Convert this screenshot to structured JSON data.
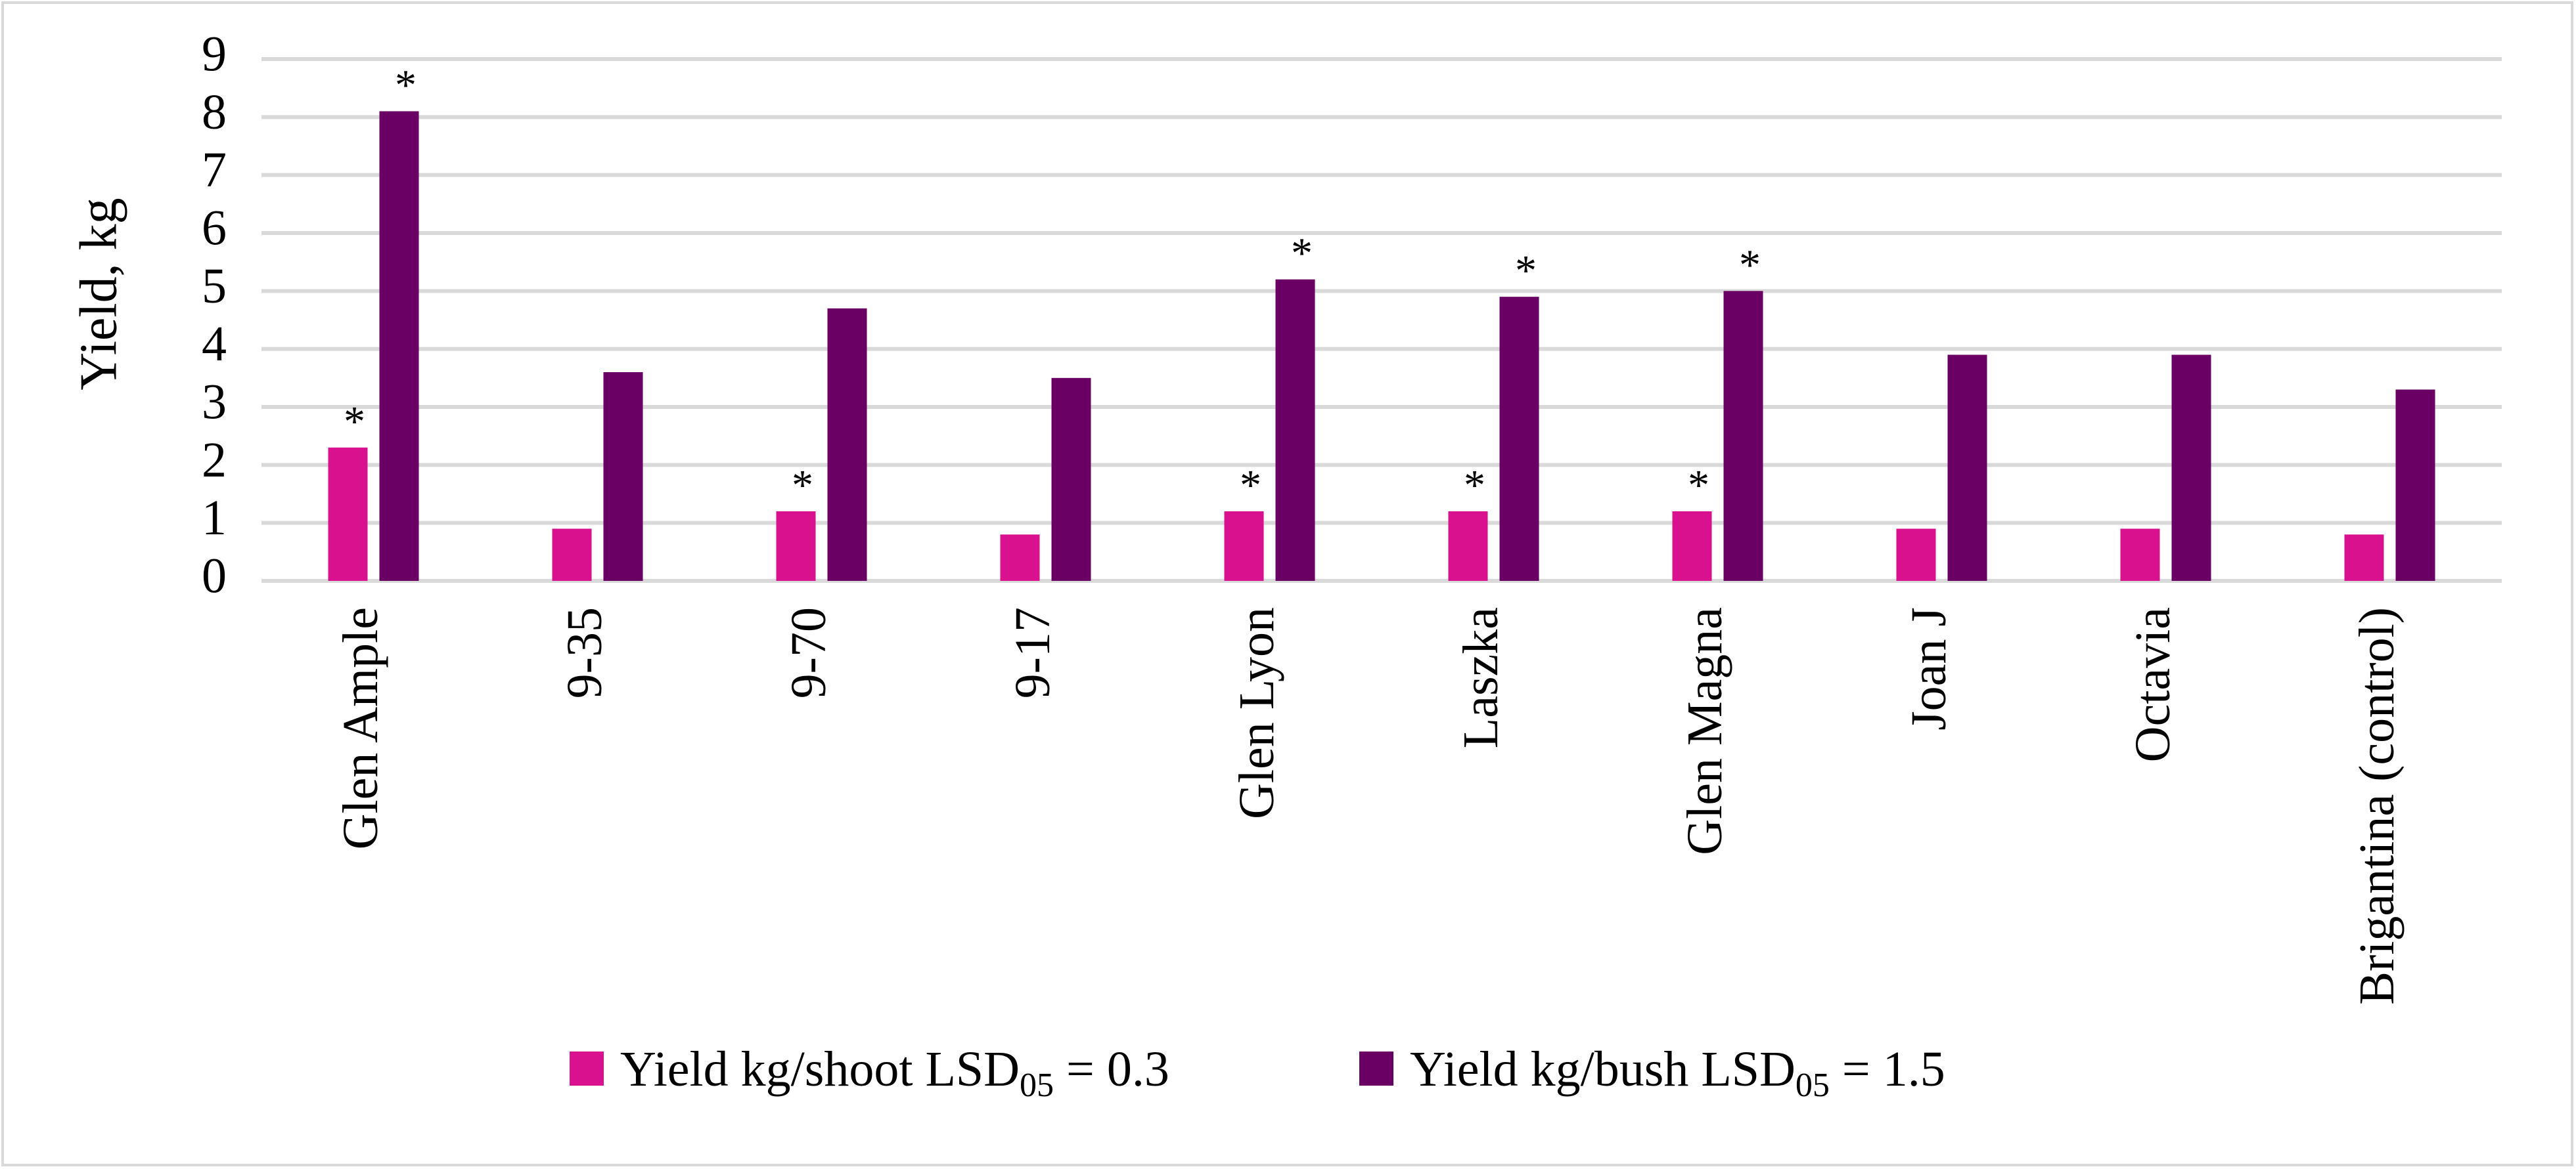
{
  "chart_data": {
    "type": "bar",
    "title": "",
    "xlabel": "",
    "ylabel": "Yield, kg",
    "ylim": [
      0,
      9
    ],
    "yticks": [
      0,
      1,
      2,
      3,
      4,
      5,
      6,
      7,
      8,
      9
    ],
    "grid": true,
    "legend_position": "bottom",
    "categories": [
      "Glen Ample",
      "9-35",
      "9-70",
      "9-17",
      "Glen Lyon",
      "Laszka",
      "Glen Magna",
      "Joan J",
      "Octavia",
      "Brigantina (control)"
    ],
    "significance_marker": "*",
    "series": [
      {
        "name": "Yield kg/shoot LSD05 = 0.3",
        "legend_main": "Yield kg/shoot LSD",
        "legend_sub": "05",
        "legend_tail": " = 0.3",
        "color": "#d9118f",
        "values": [
          2.3,
          0.9,
          1.2,
          0.8,
          1.2,
          1.2,
          1.2,
          0.9,
          0.9,
          0.8
        ],
        "significant": [
          true,
          false,
          true,
          false,
          true,
          true,
          true,
          false,
          false,
          false
        ]
      },
      {
        "name": "Yield kg/bush LSD05 = 1.5",
        "legend_main": "Yield kg/bush LSD",
        "legend_sub": "05",
        "legend_tail": " = 1.5",
        "color": "#6a0064",
        "values": [
          8.1,
          3.6,
          4.7,
          3.5,
          5.2,
          4.9,
          5.0,
          3.9,
          3.9,
          3.3
        ],
        "significant": [
          true,
          false,
          false,
          false,
          true,
          true,
          true,
          false,
          false,
          false
        ]
      }
    ]
  }
}
